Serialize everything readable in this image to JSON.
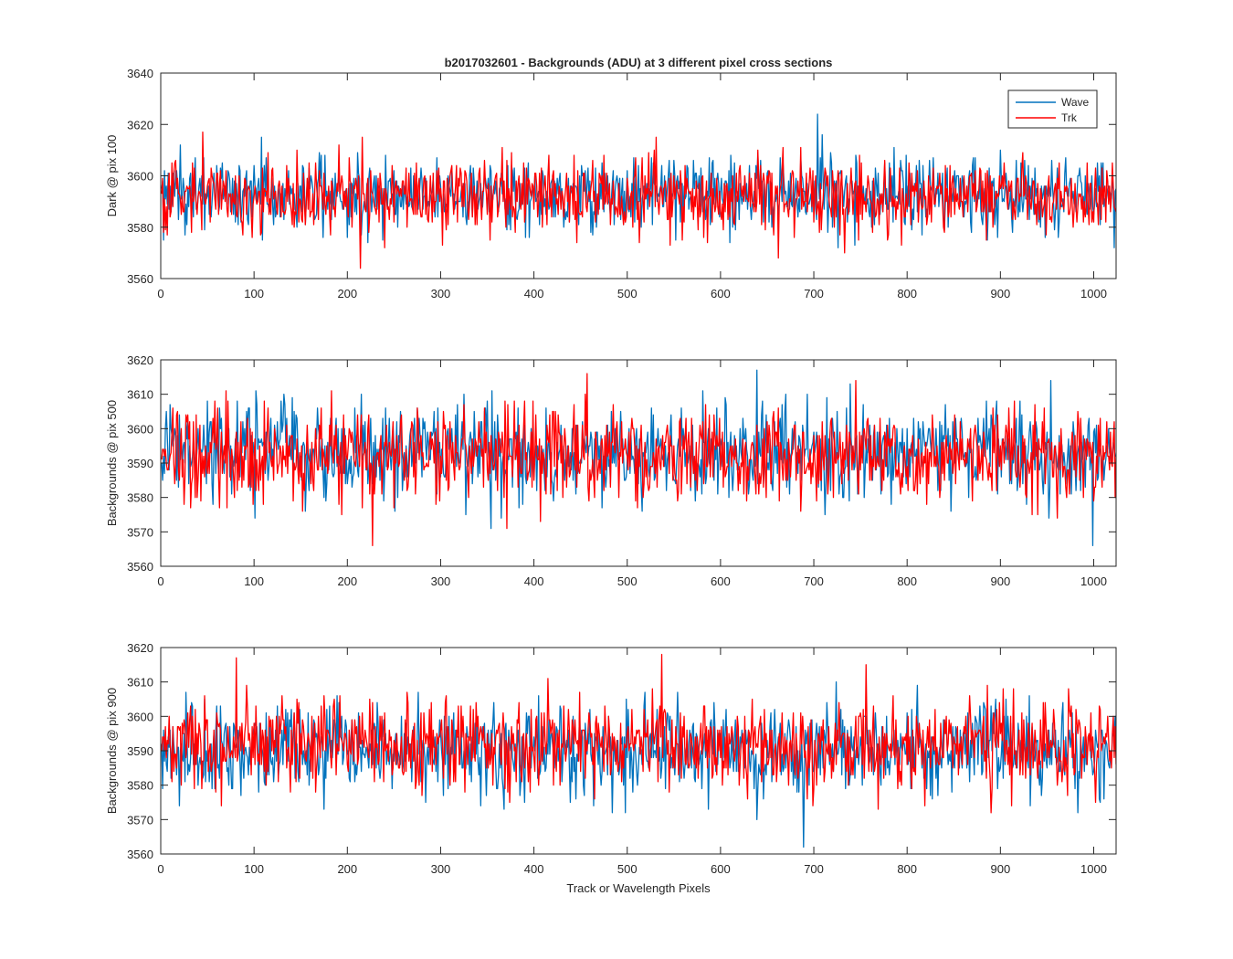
{
  "figure": {
    "title": "b2017032601 - Backgrounds (ADU) at 3 different pixel cross sections",
    "xlabel": "Track or Wavelength Pixels"
  },
  "legend": {
    "entries": [
      {
        "name": "Wave",
        "color": "#0072BD"
      },
      {
        "name": "Trk",
        "color": "#FF0000"
      }
    ],
    "placement": "top-right of first panel"
  },
  "chart_data": [
    {
      "type": "line",
      "title": "b2017032601 - Backgrounds (ADU) at 3 different pixel cross sections",
      "xlabel": "",
      "ylabel": "Dark @ pix 100",
      "xlim": [
        0,
        1024
      ],
      "ylim": [
        3560,
        3640
      ],
      "xticks": [
        "0",
        "100",
        "200",
        "300",
        "400",
        "500",
        "600",
        "700",
        "800",
        "900",
        "1000"
      ],
      "yticks": [
        "3560",
        "3580",
        "3600",
        "3620",
        "3640"
      ],
      "series": [
        {
          "name": "Wave",
          "color": "#0072BD",
          "points": 1024,
          "mean": 3593,
          "approx_range": [
            3570,
            3624
          ],
          "notable": [
            [
              703,
              3624
            ]
          ]
        },
        {
          "name": "Trk",
          "color": "#FF0000",
          "points": 1024,
          "mean": 3592,
          "approx_range": [
            3564,
            3617
          ],
          "notable": [
            [
              213,
              3564
            ],
            [
              44,
              3617
            ]
          ]
        }
      ]
    },
    {
      "type": "line",
      "title": "",
      "xlabel": "",
      "ylabel": "Backgrounds @ pix 500",
      "xlim": [
        0,
        1024
      ],
      "ylim": [
        3560,
        3620
      ],
      "xticks": [
        "0",
        "100",
        "200",
        "300",
        "400",
        "500",
        "600",
        "700",
        "800",
        "900",
        "1000"
      ],
      "yticks": [
        "3560",
        "3570",
        "3580",
        "3590",
        "3600",
        "3610",
        "3620"
      ],
      "series": [
        {
          "name": "Wave",
          "color": "#0072BD",
          "points": 1024,
          "mean": 3593,
          "approx_range": [
            3566,
            3617
          ],
          "notable": [
            [
              638,
              3617
            ],
            [
              998,
              3566
            ]
          ]
        },
        {
          "name": "Trk",
          "color": "#FF0000",
          "points": 1024,
          "mean": 3592,
          "approx_range": [
            3566,
            3616
          ],
          "notable": [
            [
              226,
              3566
            ],
            [
              456,
              3616
            ]
          ]
        }
      ]
    },
    {
      "type": "line",
      "title": "",
      "xlabel": "Track or Wavelength Pixels",
      "ylabel": "Backgrounds @ pix 900",
      "xlim": [
        0,
        1024
      ],
      "ylim": [
        3560,
        3620
      ],
      "xticks": [
        "0",
        "100",
        "200",
        "300",
        "400",
        "500",
        "600",
        "700",
        "800",
        "900",
        "1000"
      ],
      "yticks": [
        "3560",
        "3570",
        "3580",
        "3590",
        "3600",
        "3610",
        "3620"
      ],
      "series": [
        {
          "name": "Wave",
          "color": "#0072BD",
          "points": 1024,
          "mean": 3590,
          "approx_range": [
            3562,
            3613
          ],
          "notable": [
            [
              688,
              3562
            ]
          ]
        },
        {
          "name": "Trk",
          "color": "#FF0000",
          "points": 1024,
          "mean": 3592,
          "approx_range": [
            3568,
            3618
          ],
          "notable": [
            [
              536,
              3618
            ],
            [
              80,
              3617
            ]
          ]
        }
      ]
    }
  ]
}
